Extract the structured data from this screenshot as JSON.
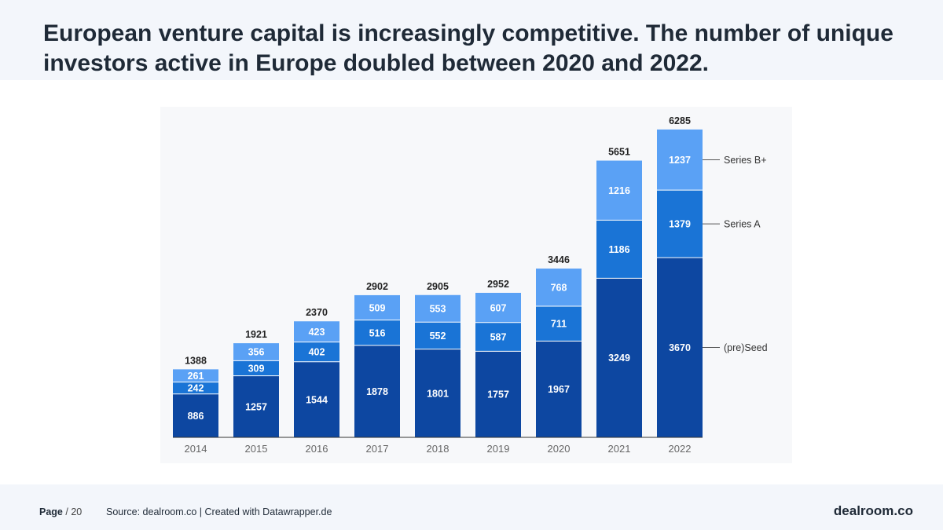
{
  "title": "European venture capital is increasingly competitive. The number of unique investors active in Europe doubled between 2020 and 2022.",
  "chart_data": {
    "type": "bar",
    "stacked": true,
    "categories": [
      "2014",
      "2015",
      "2016",
      "2017",
      "2018",
      "2019",
      "2020",
      "2021",
      "2022"
    ],
    "series": [
      {
        "name": "(pre)Seed",
        "values": [
          886,
          1257,
          1544,
          1878,
          1801,
          1757,
          1967,
          3249,
          3670
        ],
        "color": "#0d47a1"
      },
      {
        "name": "Series A",
        "values": [
          242,
          309,
          402,
          516,
          552,
          587,
          711,
          1186,
          1379
        ],
        "color": "#1a74d6"
      },
      {
        "name": "Series B+",
        "values": [
          261,
          356,
          423,
          509,
          553,
          607,
          768,
          1216,
          1237
        ],
        "color": "#5aa1f5"
      }
    ],
    "totals": [
      1388,
      1921,
      2370,
      2902,
      2905,
      2952,
      3446,
      5651,
      6285
    ],
    "ylim": [
      0,
      6285
    ],
    "xlabel": "",
    "ylabel": "",
    "legend": "direct labels, right side"
  },
  "footer": {
    "page_label": "Page",
    "page_number": "/ 20",
    "source": "Source: dealroom.co | Created with Datawrapper.de",
    "brand": "dealroom.co"
  }
}
